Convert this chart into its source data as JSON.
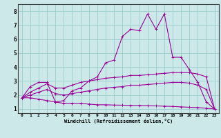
{
  "xlabel": "Windchill (Refroidissement éolien,°C)",
  "bg_color": "#cce8e8",
  "line_color": "#990099",
  "grid_color": "#99cccc",
  "x_ticks": [
    0,
    1,
    2,
    3,
    4,
    5,
    6,
    7,
    8,
    9,
    10,
    11,
    12,
    13,
    14,
    15,
    16,
    17,
    18,
    19,
    20,
    21,
    22,
    23
  ],
  "y_ticks": [
    1,
    2,
    3,
    4,
    5,
    6,
    7,
    8
  ],
  "ylim": [
    0.7,
    8.5
  ],
  "xlim": [
    -0.5,
    23.5
  ],
  "series": [
    {
      "x": [
        0,
        1,
        2,
        3,
        4,
        5,
        6,
        7,
        8,
        9,
        10,
        11,
        12,
        13,
        14,
        15,
        16,
        17,
        18,
        19,
        20,
        21,
        22,
        23
      ],
      "y": [
        1.8,
        2.6,
        2.9,
        2.9,
        1.5,
        1.6,
        2.3,
        2.5,
        3.0,
        3.3,
        4.3,
        4.5,
        6.2,
        6.7,
        6.6,
        7.8,
        6.7,
        7.8,
        4.7,
        4.7,
        3.8,
        2.9,
        1.5,
        1.0
      ]
    },
    {
      "x": [
        0,
        1,
        2,
        3,
        4,
        5,
        6,
        7,
        8,
        9,
        10,
        11,
        12,
        13,
        14,
        15,
        16,
        17,
        18,
        19,
        20,
        21,
        22,
        23
      ],
      "y": [
        1.8,
        2.2,
        2.5,
        2.8,
        2.5,
        2.5,
        2.7,
        2.9,
        3.0,
        3.1,
        3.2,
        3.25,
        3.3,
        3.4,
        3.4,
        3.45,
        3.5,
        3.55,
        3.6,
        3.6,
        3.6,
        3.5,
        3.3,
        1.0
      ]
    },
    {
      "x": [
        0,
        1,
        2,
        3,
        4,
        5,
        6,
        7,
        8,
        9,
        10,
        11,
        12,
        13,
        14,
        15,
        16,
        17,
        18,
        19,
        20,
        21,
        22,
        23
      ],
      "y": [
        1.8,
        2.0,
        2.2,
        2.4,
        2.1,
        2.0,
        2.1,
        2.2,
        2.3,
        2.4,
        2.5,
        2.55,
        2.6,
        2.7,
        2.7,
        2.75,
        2.8,
        2.85,
        2.9,
        2.9,
        2.85,
        2.7,
        2.4,
        1.0
      ]
    },
    {
      "x": [
        0,
        1,
        2,
        3,
        4,
        5,
        6,
        7,
        8,
        9,
        10,
        11,
        12,
        13,
        14,
        15,
        16,
        17,
        18,
        19,
        20,
        21,
        22,
        23
      ],
      "y": [
        1.8,
        1.8,
        1.7,
        1.6,
        1.5,
        1.4,
        1.4,
        1.4,
        1.35,
        1.3,
        1.3,
        1.28,
        1.27,
        1.25,
        1.25,
        1.23,
        1.22,
        1.2,
        1.18,
        1.15,
        1.12,
        1.1,
        1.05,
        1.0
      ]
    }
  ]
}
